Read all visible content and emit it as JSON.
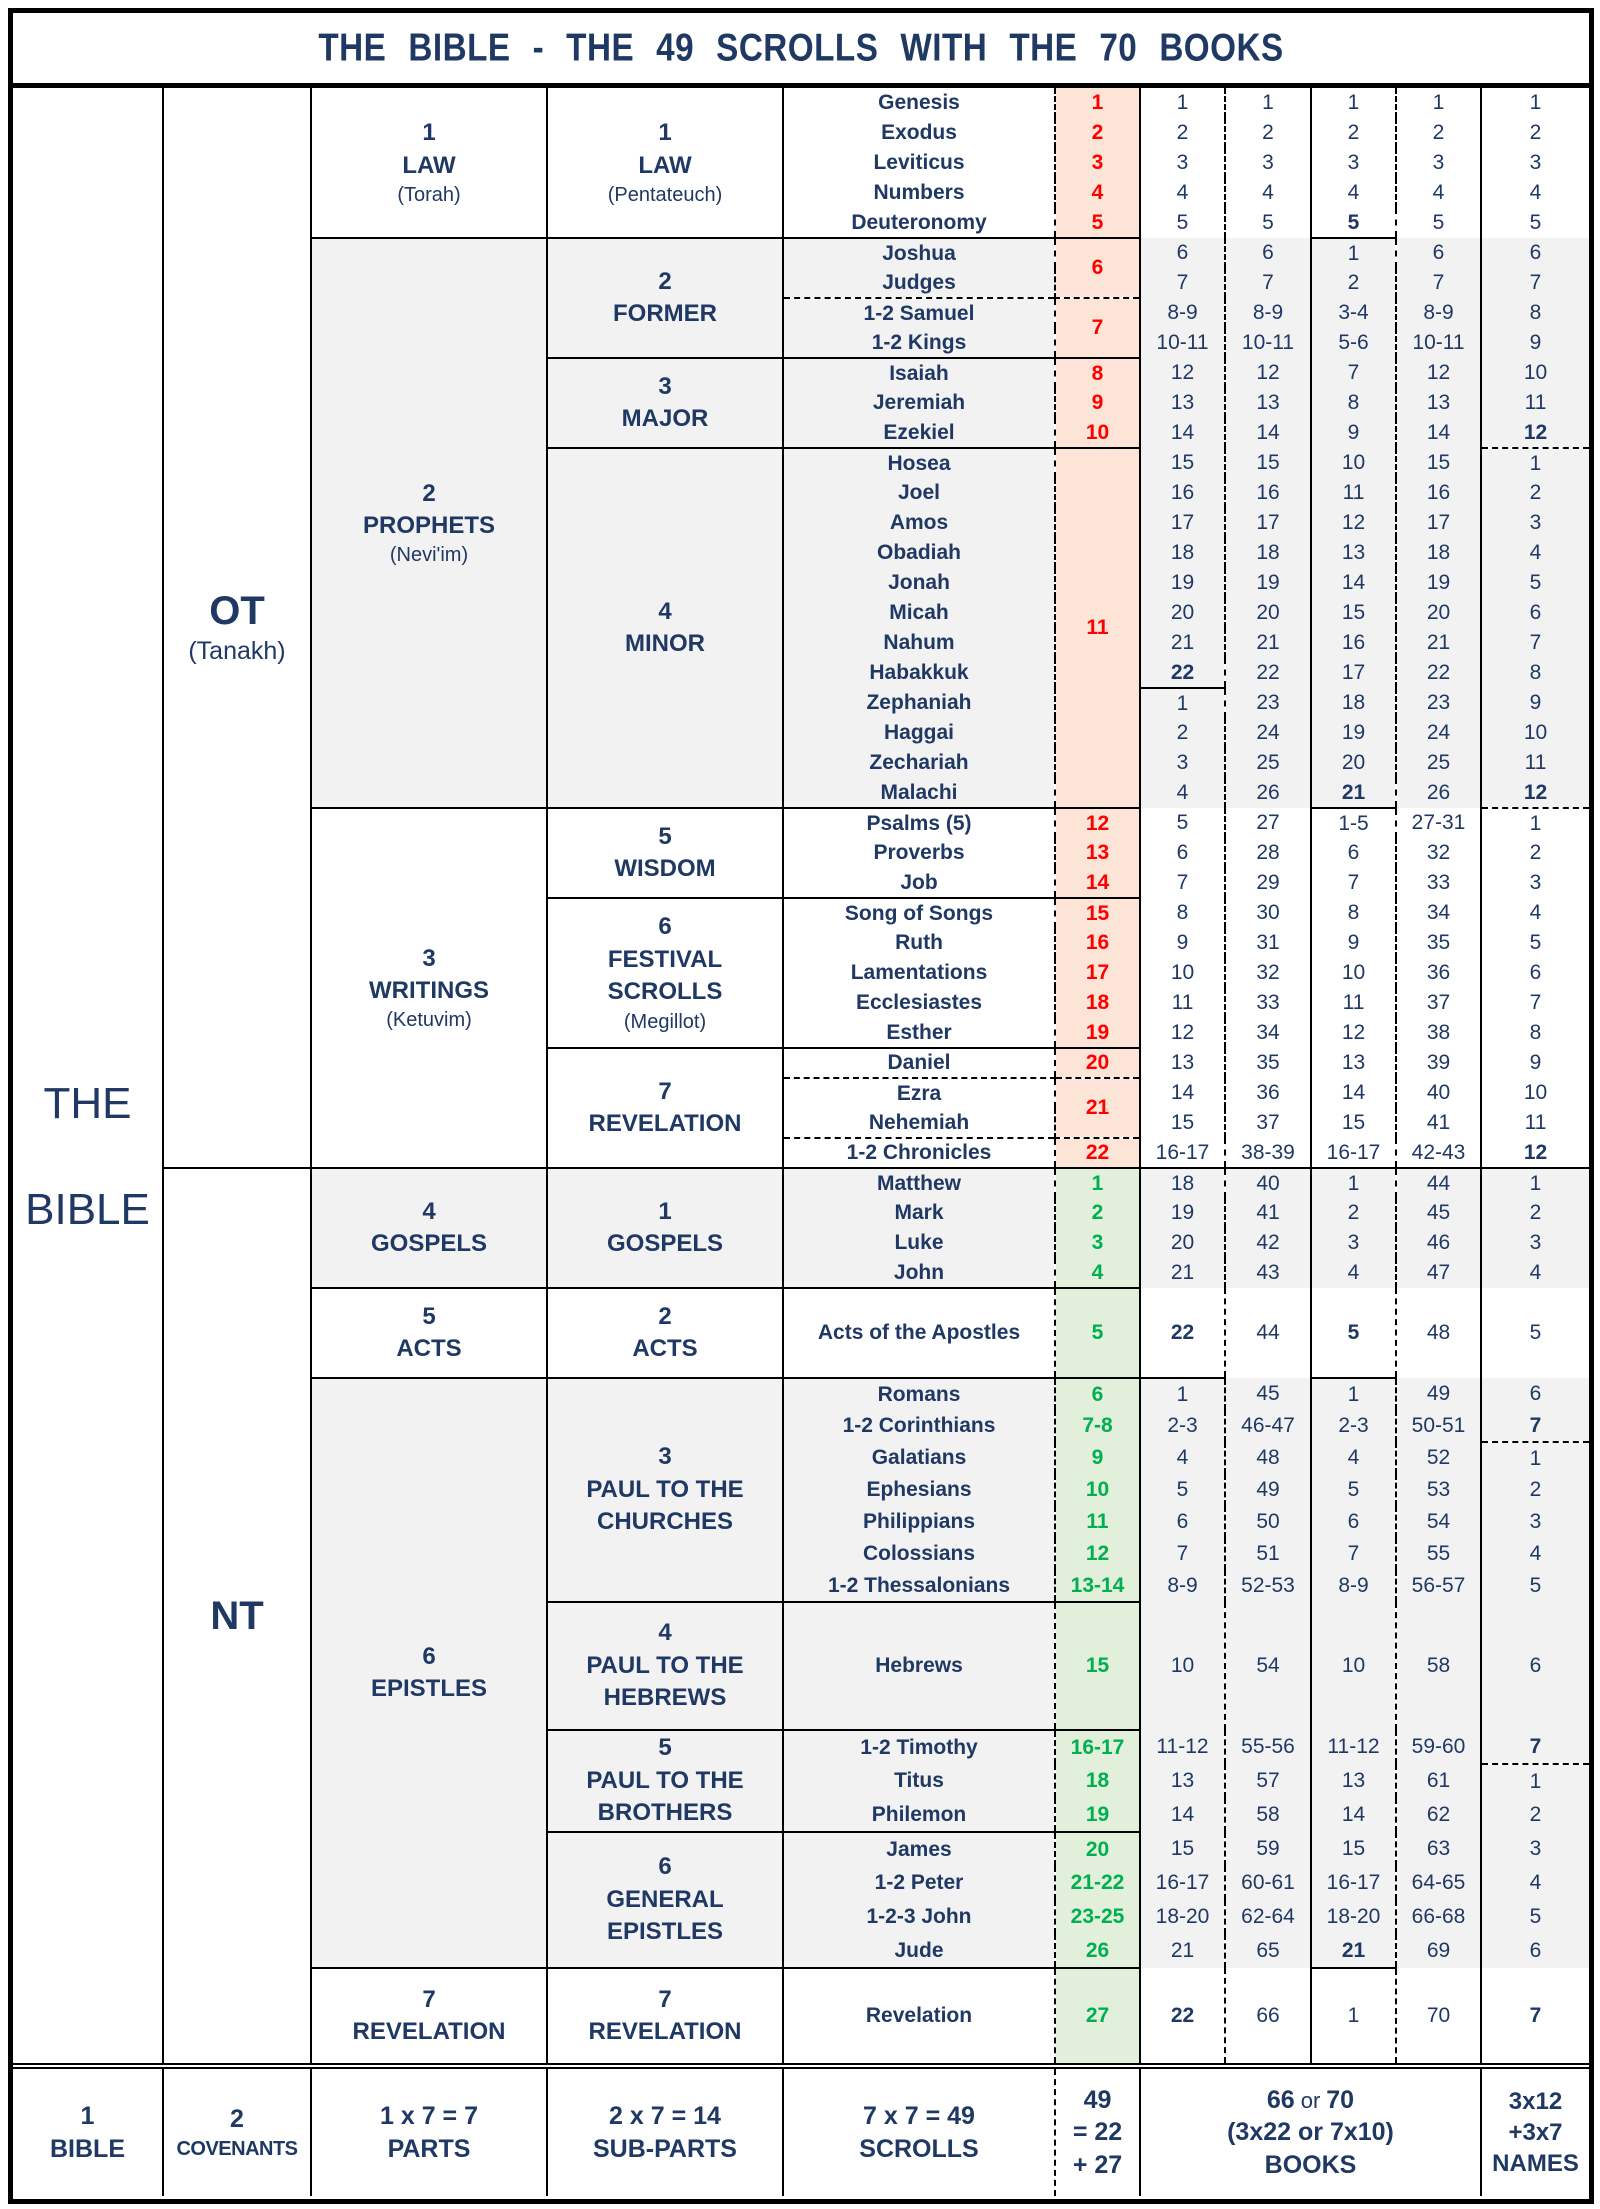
{
  "title": "THE BIBLE - THE 49 SCROLLS WITH THE 70 BOOKS",
  "left_column": {
    "line1": "THE",
    "line2": "BIBLE"
  },
  "testaments": {
    "ot": {
      "label": "OT",
      "sub": "(Tanakh)"
    },
    "nt": {
      "label": "NT"
    }
  },
  "parts": [
    {
      "num": "1",
      "name": "LAW",
      "sub": "(Torah)"
    },
    {
      "num": "2",
      "name": "PROPHETS",
      "sub": "(Nevi'im)"
    },
    {
      "num": "3",
      "name": "WRITINGS",
      "sub": "(Ketuvim)"
    },
    {
      "num": "4",
      "name": "GOSPELS"
    },
    {
      "num": "5",
      "name": "ACTS"
    },
    {
      "num": "6",
      "name": "EPISTLES"
    },
    {
      "num": "7",
      "name": "REVELATION"
    }
  ],
  "sub_parts": [
    {
      "num": "1",
      "lines": [
        "LAW"
      ],
      "sub": "(Pentateuch)"
    },
    {
      "num": "2",
      "lines": [
        "FORMER"
      ]
    },
    {
      "num": "3",
      "lines": [
        "MAJOR"
      ]
    },
    {
      "num": "4",
      "lines": [
        "MINOR"
      ]
    },
    {
      "num": "5",
      "lines": [
        "WISDOM"
      ]
    },
    {
      "num": "6",
      "lines": [
        "FESTIVAL",
        "SCROLLS"
      ],
      "sub": "(Megillot)"
    },
    {
      "num": "7",
      "lines": [
        "REVELATION"
      ]
    },
    {
      "num": "1",
      "lines": [
        "GOSPELS"
      ]
    },
    {
      "num": "2",
      "lines": [
        "ACTS"
      ]
    },
    {
      "num": "3",
      "lines": [
        "PAUL TO THE",
        "CHURCHES"
      ]
    },
    {
      "num": "4",
      "lines": [
        "PAUL TO THE",
        "HEBREWS"
      ]
    },
    {
      "num": "5",
      "lines": [
        "PAUL TO THE",
        "BROTHERS"
      ]
    },
    {
      "num": "6",
      "lines": [
        "GENERAL",
        "EPISTLES"
      ]
    },
    {
      "num": "7",
      "lines": [
        "REVELATION"
      ]
    }
  ],
  "books": [
    {
      "name": "Genesis",
      "scroll": "1",
      "cols": [
        "1",
        "1",
        "1",
        "1",
        "1"
      ],
      "bold": []
    },
    {
      "name": "Exodus",
      "scroll": "2",
      "cols": [
        "2",
        "2",
        "2",
        "2",
        "2"
      ],
      "bold": []
    },
    {
      "name": "Leviticus",
      "scroll": "3",
      "cols": [
        "3",
        "3",
        "3",
        "3",
        "3"
      ],
      "bold": []
    },
    {
      "name": "Numbers",
      "scroll": "4",
      "cols": [
        "4",
        "4",
        "4",
        "4",
        "4"
      ],
      "bold": []
    },
    {
      "name": "Deuteronomy",
      "scroll": "5",
      "cols": [
        "5",
        "5",
        "5",
        "5",
        "5"
      ],
      "bold": [
        "c"
      ]
    },
    {
      "name": "Joshua",
      "scroll": "6",
      "cols": [
        "6",
        "6",
        "1",
        "6",
        "6"
      ],
      "bold": []
    },
    {
      "name": "Judges",
      "cols": [
        "7",
        "7",
        "2",
        "7",
        "7"
      ],
      "bold": []
    },
    {
      "name": "1-2 Samuel",
      "scroll": "7",
      "cols": [
        "8-9",
        "8-9",
        "3-4",
        "8-9",
        "8"
      ],
      "bold": []
    },
    {
      "name": "1-2 Kings",
      "cols": [
        "10-11",
        "10-11",
        "5-6",
        "10-11",
        "9"
      ],
      "bold": []
    },
    {
      "name": "Isaiah",
      "scroll": "8",
      "cols": [
        "12",
        "12",
        "7",
        "12",
        "10"
      ],
      "bold": []
    },
    {
      "name": "Jeremiah",
      "scroll": "9",
      "cols": [
        "13",
        "13",
        "8",
        "13",
        "11"
      ],
      "bold": []
    },
    {
      "name": "Ezekiel",
      "scroll": "10",
      "cols": [
        "14",
        "14",
        "9",
        "14",
        "12"
      ],
      "bold": [
        "e"
      ]
    },
    {
      "name": "Hosea",
      "scroll": "11",
      "cols": [
        "15",
        "15",
        "10",
        "15",
        "1"
      ],
      "bold": []
    },
    {
      "name": "Joel",
      "cols": [
        "16",
        "16",
        "11",
        "16",
        "2"
      ],
      "bold": []
    },
    {
      "name": "Amos",
      "cols": [
        "17",
        "17",
        "12",
        "17",
        "3"
      ],
      "bold": []
    },
    {
      "name": "Obadiah",
      "cols": [
        "18",
        "18",
        "13",
        "18",
        "4"
      ],
      "bold": []
    },
    {
      "name": "Jonah",
      "cols": [
        "19",
        "19",
        "14",
        "19",
        "5"
      ],
      "bold": []
    },
    {
      "name": "Micah",
      "cols": [
        "20",
        "20",
        "15",
        "20",
        "6"
      ],
      "bold": []
    },
    {
      "name": "Nahum",
      "cols": [
        "21",
        "21",
        "16",
        "21",
        "7"
      ],
      "bold": []
    },
    {
      "name": "Habakkuk",
      "cols": [
        "22",
        "22",
        "17",
        "22",
        "8"
      ],
      "bold": [
        "a"
      ]
    },
    {
      "name": "Zephaniah",
      "cols": [
        "1",
        "23",
        "18",
        "23",
        "9"
      ],
      "bold": []
    },
    {
      "name": "Haggai",
      "cols": [
        "2",
        "24",
        "19",
        "24",
        "10"
      ],
      "bold": []
    },
    {
      "name": "Zechariah",
      "cols": [
        "3",
        "25",
        "20",
        "25",
        "11"
      ],
      "bold": []
    },
    {
      "name": "Malachi",
      "cols": [
        "4",
        "26",
        "21",
        "26",
        "12"
      ],
      "bold": [
        "c",
        "e"
      ]
    },
    {
      "name": "Psalms (5)",
      "scroll": "12",
      "cols": [
        "5",
        "27",
        "1-5",
        "27-31",
        "1"
      ],
      "bold": []
    },
    {
      "name": "Proverbs",
      "scroll": "13",
      "cols": [
        "6",
        "28",
        "6",
        "32",
        "2"
      ],
      "bold": []
    },
    {
      "name": "Job",
      "scroll": "14",
      "cols": [
        "7",
        "29",
        "7",
        "33",
        "3"
      ],
      "bold": []
    },
    {
      "name": "Song of Songs",
      "scroll": "15",
      "cols": [
        "8",
        "30",
        "8",
        "34",
        "4"
      ],
      "bold": []
    },
    {
      "name": "Ruth",
      "scroll": "16",
      "cols": [
        "9",
        "31",
        "9",
        "35",
        "5"
      ],
      "bold": []
    },
    {
      "name": "Lamentations",
      "scroll": "17",
      "cols": [
        "10",
        "32",
        "10",
        "36",
        "6"
      ],
      "bold": []
    },
    {
      "name": "Ecclesiastes",
      "scroll": "18",
      "cols": [
        "11",
        "33",
        "11",
        "37",
        "7"
      ],
      "bold": []
    },
    {
      "name": "Esther",
      "scroll": "19",
      "cols": [
        "12",
        "34",
        "12",
        "38",
        "8"
      ],
      "bold": []
    },
    {
      "name": "Daniel",
      "scroll": "20",
      "cols": [
        "13",
        "35",
        "13",
        "39",
        "9"
      ],
      "bold": []
    },
    {
      "name": "Ezra",
      "scroll": "21",
      "cols": [
        "14",
        "36",
        "14",
        "40",
        "10"
      ],
      "bold": []
    },
    {
      "name": "Nehemiah",
      "cols": [
        "15",
        "37",
        "15",
        "41",
        "11"
      ],
      "bold": []
    },
    {
      "name": "1-2 Chronicles",
      "scroll": "22",
      "cols": [
        "16-17",
        "38-39",
        "16-17",
        "42-43",
        "12"
      ],
      "bold": [
        "e"
      ]
    },
    {
      "name": "Matthew",
      "scroll": "1",
      "cols": [
        "18",
        "40",
        "1",
        "44",
        "1"
      ],
      "bold": []
    },
    {
      "name": "Mark",
      "scroll": "2",
      "cols": [
        "19",
        "41",
        "2",
        "45",
        "2"
      ],
      "bold": []
    },
    {
      "name": "Luke",
      "scroll": "3",
      "cols": [
        "20",
        "42",
        "3",
        "46",
        "3"
      ],
      "bold": []
    },
    {
      "name": "John",
      "scroll": "4",
      "cols": [
        "21",
        "43",
        "4",
        "47",
        "4"
      ],
      "bold": []
    },
    {
      "name": "Acts of the Apostles",
      "scroll": "5",
      "cols": [
        "22",
        "44",
        "5",
        "48",
        "5"
      ],
      "bold": [
        "a",
        "c"
      ]
    },
    {
      "name": "Romans",
      "scroll": "6",
      "cols": [
        "1",
        "45",
        "1",
        "49",
        "6"
      ],
      "bold": []
    },
    {
      "name": "1-2 Corinthians",
      "scroll": "7-8",
      "cols": [
        "2-3",
        "46-47",
        "2-3",
        "50-51",
        "7"
      ],
      "bold": [
        "e"
      ]
    },
    {
      "name": "Galatians",
      "scroll": "9",
      "cols": [
        "4",
        "48",
        "4",
        "52",
        "1"
      ],
      "bold": []
    },
    {
      "name": "Ephesians",
      "scroll": "10",
      "cols": [
        "5",
        "49",
        "5",
        "53",
        "2"
      ],
      "bold": []
    },
    {
      "name": "Philippians",
      "scroll": "11",
      "cols": [
        "6",
        "50",
        "6",
        "54",
        "3"
      ],
      "bold": []
    },
    {
      "name": "Colossians",
      "scroll": "12",
      "cols": [
        "7",
        "51",
        "7",
        "55",
        "4"
      ],
      "bold": []
    },
    {
      "name": "1-2 Thessalonians",
      "scroll": "13-14",
      "cols": [
        "8-9",
        "52-53",
        "8-9",
        "56-57",
        "5"
      ],
      "bold": []
    },
    {
      "name": "Hebrews",
      "scroll": "15",
      "cols": [
        "10",
        "54",
        "10",
        "58",
        "6"
      ],
      "bold": []
    },
    {
      "name": "1-2 Timothy",
      "scroll": "16-17",
      "cols": [
        "11-12",
        "55-56",
        "11-12",
        "59-60",
        "7"
      ],
      "bold": [
        "e"
      ]
    },
    {
      "name": "Titus",
      "scroll": "18",
      "cols": [
        "13",
        "57",
        "13",
        "61",
        "1"
      ],
      "bold": []
    },
    {
      "name": "Philemon",
      "scroll": "19",
      "cols": [
        "14",
        "58",
        "14",
        "62",
        "2"
      ],
      "bold": []
    },
    {
      "name": "James",
      "scroll": "20",
      "cols": [
        "15",
        "59",
        "15",
        "63",
        "3"
      ],
      "bold": []
    },
    {
      "name": "1-2 Peter",
      "scroll": "21-22",
      "cols": [
        "16-17",
        "60-61",
        "16-17",
        "64-65",
        "4"
      ],
      "bold": []
    },
    {
      "name": "1-2-3 John",
      "scroll": "23-25",
      "cols": [
        "18-20",
        "62-64",
        "18-20",
        "66-68",
        "5"
      ],
      "bold": []
    },
    {
      "name": "Jude",
      "scroll": "26",
      "cols": [
        "21",
        "65",
        "21",
        "69",
        "6"
      ],
      "bold": [
        "c"
      ]
    },
    {
      "name": "Revelation",
      "scroll": "27",
      "cols": [
        "22",
        "66",
        "1",
        "70",
        "7"
      ],
      "bold": [
        "a",
        "e"
      ]
    }
  ],
  "totals": {
    "bible": {
      "num": "1",
      "label": "BIBLE"
    },
    "covenants": {
      "num": "2",
      "label": "COVENANTS"
    },
    "parts": {
      "formula": "1 x 7 = 7",
      "label": "PARTS"
    },
    "sub_parts": {
      "formula": "2 x 7 = 14",
      "label": "SUB-PARTS"
    },
    "scrolls": {
      "formula": "7 x 7 = 49",
      "label": "SCROLLS"
    },
    "scroll_sum": {
      "l1": "49",
      "l2": "= 22",
      "l3": "+ 27"
    },
    "books": {
      "v1": "66",
      "or": "or",
      "v2": "70",
      "formula": "(3x22 or 7x10)",
      "label": "BOOKS"
    },
    "names": {
      "l1": "3x12",
      "l2": "+3x7",
      "l3": "NAMES"
    }
  },
  "colors": {
    "navy": "#1f3864",
    "red": "#ff0000",
    "green": "#00b050",
    "gray": "#f2f2f2",
    "ot_shade": "#fce4d6",
    "nt_shade": "#e2efda"
  }
}
